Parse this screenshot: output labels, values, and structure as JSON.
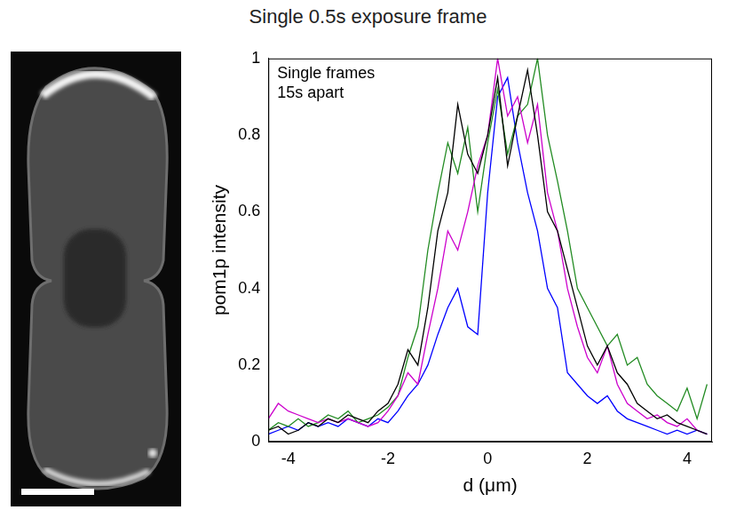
{
  "chart_data": {
    "type": "line",
    "title": "Single 0.5s exposure frame",
    "annotation": [
      "Single frames",
      "15s apart"
    ],
    "x_label": "d (μm)",
    "y_label": "pom1p intensity",
    "x": [
      -4.4,
      -4.2,
      -4.0,
      -3.8,
      -3.6,
      -3.4,
      -3.2,
      -3.0,
      -2.8,
      -2.6,
      -2.4,
      -2.2,
      -2.0,
      -1.8,
      -1.6,
      -1.4,
      -1.2,
      -1.0,
      -0.8,
      -0.6,
      -0.4,
      -0.2,
      0,
      0.2,
      0.4,
      0.6,
      0.8,
      1.0,
      1.2,
      1.4,
      1.6,
      1.8,
      2.0,
      2.2,
      2.4,
      2.6,
      2.8,
      3.0,
      3.2,
      3.4,
      3.6,
      3.8,
      4.0,
      4.2,
      4.4
    ],
    "series": [
      {
        "color": "#000000",
        "values": [
          0.03,
          0.04,
          0.02,
          0.03,
          0.05,
          0.04,
          0.06,
          0.05,
          0.07,
          0.06,
          0.05,
          0.08,
          0.1,
          0.15,
          0.24,
          0.2,
          0.35,
          0.55,
          0.65,
          0.88,
          0.75,
          0.7,
          0.8,
          0.95,
          0.72,
          0.85,
          0.97,
          0.8,
          0.6,
          0.55,
          0.45,
          0.35,
          0.25,
          0.2,
          0.25,
          0.18,
          0.15,
          0.1,
          0.08,
          0.06,
          0.07,
          0.05,
          0.04,
          0.03,
          0.02
        ]
      },
      {
        "color": "#cc00cc",
        "values": [
          0.06,
          0.1,
          0.08,
          0.07,
          0.06,
          0.05,
          0.06,
          0.05,
          0.06,
          0.05,
          0.04,
          0.05,
          0.08,
          0.12,
          0.18,
          0.15,
          0.28,
          0.4,
          0.55,
          0.5,
          0.6,
          0.72,
          0.8,
          1.0,
          0.85,
          0.9,
          0.78,
          0.88,
          0.65,
          0.55,
          0.4,
          0.3,
          0.22,
          0.18,
          0.25,
          0.15,
          0.1,
          0.08,
          0.06,
          0.07,
          0.05,
          0.04,
          0.06,
          0.03,
          0.02
        ]
      },
      {
        "color": "#228b22",
        "values": [
          0.03,
          0.05,
          0.04,
          0.06,
          0.04,
          0.05,
          0.07,
          0.06,
          0.08,
          0.05,
          0.06,
          0.07,
          0.09,
          0.12,
          0.22,
          0.3,
          0.5,
          0.65,
          0.78,
          0.7,
          0.82,
          0.6,
          0.78,
          0.92,
          0.75,
          0.85,
          0.88,
          1.0,
          0.8,
          0.68,
          0.55,
          0.4,
          0.35,
          0.3,
          0.25,
          0.28,
          0.2,
          0.22,
          0.15,
          0.12,
          0.1,
          0.08,
          0.14,
          0.06,
          0.15
        ]
      },
      {
        "color": "#0000ff",
        "values": [
          0.02,
          0.03,
          0.04,
          0.03,
          0.05,
          0.04,
          0.05,
          0.04,
          0.06,
          0.05,
          0.04,
          0.06,
          0.05,
          0.08,
          0.12,
          0.15,
          0.2,
          0.28,
          0.35,
          0.4,
          0.3,
          0.28,
          0.65,
          0.9,
          0.95,
          0.78,
          0.65,
          0.55,
          0.4,
          0.35,
          0.18,
          0.15,
          0.12,
          0.1,
          0.12,
          0.08,
          0.06,
          0.05,
          0.04,
          0.03,
          0.02,
          0.03,
          0.02,
          0.03,
          0.02
        ]
      }
    ],
    "xlim": [
      -4.4,
      4.5
    ],
    "xticks": [
      -4,
      -2,
      0,
      2,
      4
    ],
    "ylim": [
      0,
      1
    ],
    "yticks": [
      0,
      0.2,
      0.4,
      0.6,
      0.8,
      1
    ],
    "grid": false
  }
}
